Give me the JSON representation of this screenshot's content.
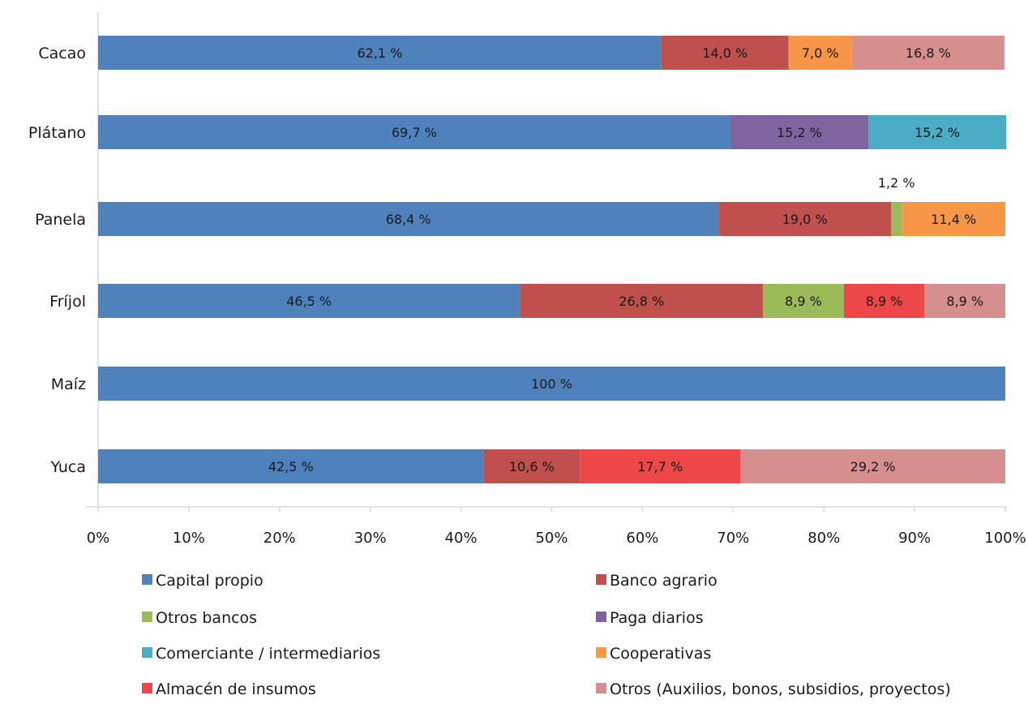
{
  "chart_data": {
    "type": "bar",
    "orientation": "horizontal",
    "stacked": true,
    "percent": true,
    "categories": [
      "Cacao",
      "Plátano",
      "Panela",
      "Fríjol",
      "Maíz",
      "Yuca"
    ],
    "x_ticks": [
      "0%",
      "10%",
      "20%",
      "30%",
      "40%",
      "50%",
      "60%",
      "70%",
      "80%",
      "90%",
      "100%"
    ],
    "xlim": [
      0,
      100
    ],
    "grid": false,
    "legend_position": "bottom",
    "series": [
      {
        "name": "Capital propio",
        "color": "#4f81bd",
        "values": [
          62.1,
          69.7,
          68.4,
          46.5,
          100,
          42.5
        ],
        "labels": [
          "62,1 %",
          "69,7 %",
          "68,4 %",
          "46,5 %",
          "100 %",
          "42,5 %"
        ]
      },
      {
        "name": "Banco agrario",
        "color": "#c0504d",
        "values": [
          14.0,
          0,
          19.0,
          26.8,
          0,
          10.6
        ],
        "labels": [
          "14,0 %",
          "",
          "19,0 %",
          "26,8 %",
          "",
          "10,6 %"
        ]
      },
      {
        "name": "Otros bancos",
        "color": "#9bbb59",
        "values": [
          0,
          0,
          1.2,
          8.9,
          0,
          0
        ],
        "labels": [
          "",
          "",
          "1,2 %",
          "8,9 %",
          "",
          ""
        ]
      },
      {
        "name": "Paga diarios",
        "color": "#8064a2",
        "values": [
          0,
          15.2,
          0,
          0,
          0,
          0
        ],
        "labels": [
          "",
          "15,2 %",
          "",
          "",
          "",
          ""
        ]
      },
      {
        "name": "Comerciante / intermediarios",
        "color": "#4bacc6",
        "values": [
          0,
          15.2,
          0,
          0,
          0,
          0
        ],
        "labels": [
          "",
          "15,2 %",
          "",
          "",
          "",
          ""
        ]
      },
      {
        "name": "Cooperativas",
        "color": "#f79646",
        "values": [
          7.0,
          0,
          11.4,
          0,
          0,
          0
        ],
        "labels": [
          "7,0 %",
          "",
          "11,4 %",
          "",
          "",
          ""
        ]
      },
      {
        "name": "Almacén de insumos",
        "color": "#ee4748",
        "values": [
          0,
          0,
          0,
          8.9,
          0,
          17.7
        ],
        "labels": [
          "",
          "",
          "",
          "8,9 %",
          "",
          "17,7 %"
        ]
      },
      {
        "name": "Otros (Auxilios, bonos, subsidios, proyectos)",
        "color": "#d68f8e",
        "values": [
          16.8,
          0,
          0,
          8.9,
          0,
          29.2
        ],
        "labels": [
          "16,8 %",
          "",
          "",
          "8,9 %",
          "",
          "29,2 %"
        ]
      }
    ]
  }
}
